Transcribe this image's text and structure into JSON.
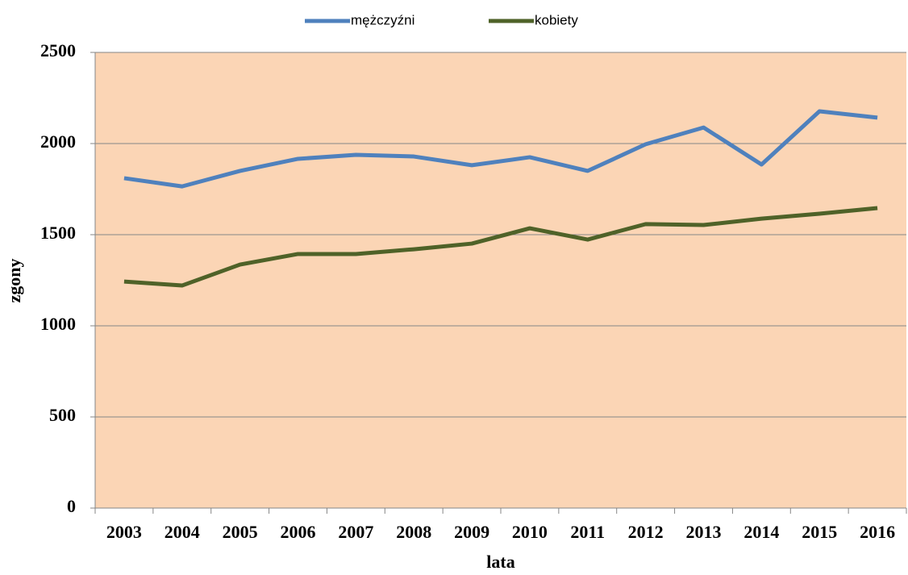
{
  "chart_data": {
    "type": "line",
    "xlabel": "lata",
    "ylabel": "zgony",
    "categories": [
      "2003",
      "2004",
      "2005",
      "2006",
      "2007",
      "2008",
      "2009",
      "2010",
      "2011",
      "2012",
      "2013",
      "2014",
      "2015",
      "2016"
    ],
    "series": [
      {
        "name": "mężczyźni",
        "color": "#4f81bd",
        "values": [
          1810,
          1765,
          1850,
          1916,
          1938,
          1929,
          1881,
          1925,
          1850,
          1996,
          2088,
          1885,
          2177,
          2142
        ]
      },
      {
        "name": "kobiety",
        "color": "#4f6228",
        "values": [
          1243,
          1221,
          1336,
          1394,
          1394,
          1420,
          1451,
          1535,
          1473,
          1558,
          1553,
          1588,
          1615,
          1646
        ]
      }
    ],
    "ylim": [
      0,
      2500
    ],
    "yticks": [
      0,
      500,
      1000,
      1500,
      2000,
      2500
    ],
    "grid": true,
    "legend": "top",
    "background": "#fbd5b5"
  }
}
